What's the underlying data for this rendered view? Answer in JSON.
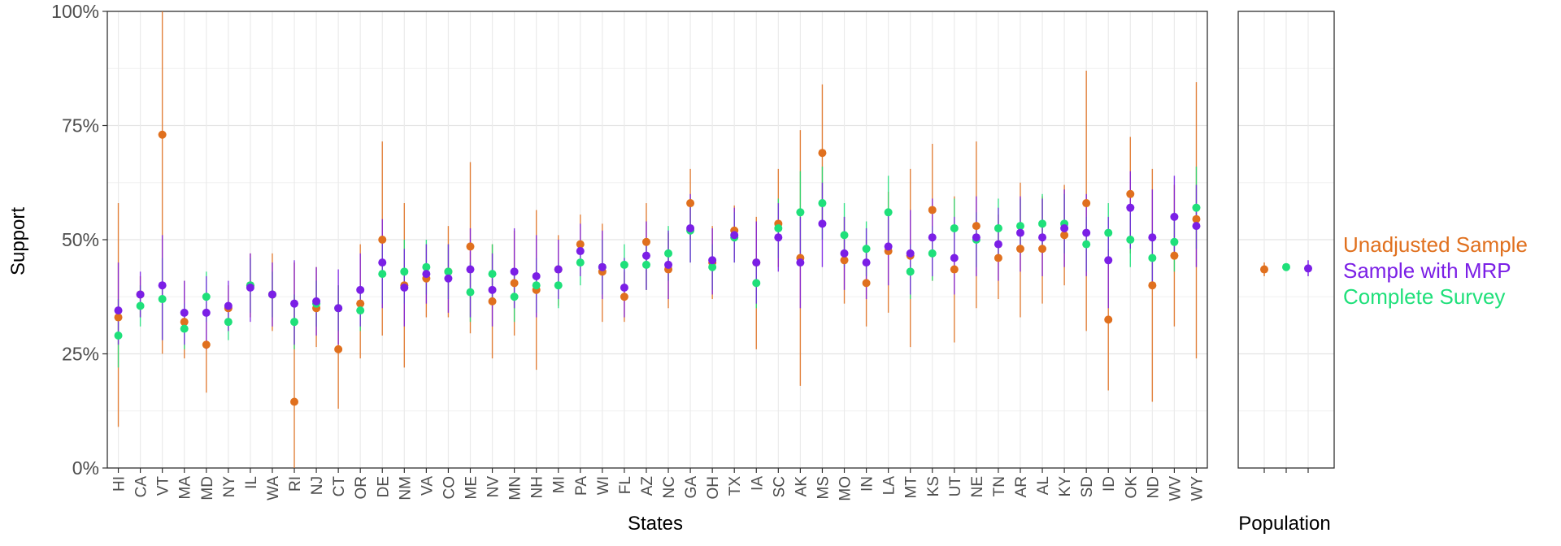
{
  "chart_data": [
    {
      "type": "scatter",
      "subtype": "point-range",
      "xlabel": "States",
      "ylabel": "Support",
      "ylim": [
        0,
        1
      ],
      "y_ticks": [
        0,
        0.25,
        0.5,
        0.75,
        1.0
      ],
      "y_tick_labels": [
        "0%",
        "25%",
        "50%",
        "75%",
        "100%"
      ],
      "grid": true,
      "legend_position": "right",
      "categories": [
        "HI",
        "CA",
        "VT",
        "MA",
        "MD",
        "NY",
        "IL",
        "WA",
        "RI",
        "NJ",
        "CT",
        "OR",
        "DE",
        "NM",
        "VA",
        "CO",
        "ME",
        "NV",
        "MN",
        "NH",
        "MI",
        "PA",
        "WI",
        "FL",
        "AZ",
        "NC",
        "GA",
        "OH",
        "TX",
        "IA",
        "SC",
        "AK",
        "MS",
        "MO",
        "IN",
        "LA",
        "MT",
        "KS",
        "UT",
        "NE",
        "TN",
        "AR",
        "AL",
        "KY",
        "SD",
        "ID",
        "OK",
        "ND",
        "WV",
        "WY"
      ],
      "series": [
        {
          "name": "Unadjusted Sample",
          "color": "#E0701E",
          "values": [
            0.33,
            0.38,
            0.73,
            0.32,
            0.27,
            0.35,
            0.4,
            0.38,
            0.145,
            0.35,
            0.26,
            0.36,
            0.5,
            0.4,
            0.415,
            0.43,
            0.485,
            0.365,
            0.405,
            0.39,
            0.435,
            0.49,
            0.43,
            0.375,
            0.495,
            0.435,
            0.58,
            0.45,
            0.52,
            0.45,
            0.535,
            0.46,
            0.69,
            0.455,
            0.405,
            0.475,
            0.465,
            0.565,
            0.435,
            0.53,
            0.46,
            0.48,
            0.48,
            0.51,
            0.58,
            0.325,
            0.6,
            0.4,
            0.465,
            0.545
          ],
          "lower": [
            0.09,
            0.33,
            0.25,
            0.24,
            0.165,
            0.3,
            0.33,
            0.3,
            0.0,
            0.265,
            0.13,
            0.24,
            0.29,
            0.22,
            0.33,
            0.33,
            0.295,
            0.24,
            0.29,
            0.215,
            0.355,
            0.42,
            0.32,
            0.32,
            0.39,
            0.35,
            0.5,
            0.37,
            0.46,
            0.26,
            0.44,
            0.18,
            0.53,
            0.36,
            0.31,
            0.34,
            0.265,
            0.41,
            0.275,
            0.35,
            0.37,
            0.33,
            0.36,
            0.4,
            0.3,
            0.17,
            0.47,
            0.145,
            0.31,
            0.24
          ],
          "upper": [
            0.58,
            0.42,
            1.0,
            0.41,
            0.36,
            0.4,
            0.47,
            0.47,
            0.45,
            0.44,
            0.4,
            0.49,
            0.715,
            0.58,
            0.49,
            0.53,
            0.67,
            0.49,
            0.52,
            0.565,
            0.51,
            0.555,
            0.535,
            0.43,
            0.58,
            0.515,
            0.655,
            0.53,
            0.575,
            0.55,
            0.655,
            0.74,
            0.84,
            0.55,
            0.5,
            0.605,
            0.655,
            0.71,
            0.595,
            0.715,
            0.555,
            0.625,
            0.595,
            0.62,
            0.87,
            0.48,
            0.725,
            0.655,
            0.62,
            0.845
          ]
        },
        {
          "name": "Sample with MRP",
          "color": "#7B1FE6",
          "values": [
            0.345,
            0.38,
            0.4,
            0.34,
            0.34,
            0.355,
            0.395,
            0.38,
            0.36,
            0.365,
            0.35,
            0.39,
            0.45,
            0.395,
            0.425,
            0.415,
            0.435,
            0.39,
            0.43,
            0.42,
            0.435,
            0.475,
            0.44,
            0.395,
            0.465,
            0.445,
            0.525,
            0.455,
            0.51,
            0.45,
            0.505,
            0.45,
            0.535,
            0.47,
            0.45,
            0.485,
            0.47,
            0.505,
            0.46,
            0.505,
            0.49,
            0.515,
            0.505,
            0.525,
            0.515,
            0.455,
            0.57,
            0.505,
            0.55,
            0.53
          ],
          "lower": [
            0.27,
            0.33,
            0.28,
            0.27,
            0.26,
            0.3,
            0.32,
            0.31,
            0.27,
            0.29,
            0.27,
            0.31,
            0.35,
            0.31,
            0.36,
            0.34,
            0.33,
            0.31,
            0.35,
            0.33,
            0.37,
            0.42,
            0.37,
            0.33,
            0.39,
            0.37,
            0.45,
            0.38,
            0.45,
            0.36,
            0.43,
            0.35,
            0.44,
            0.39,
            0.37,
            0.4,
            0.38,
            0.42,
            0.38,
            0.42,
            0.41,
            0.43,
            0.42,
            0.44,
            0.42,
            0.35,
            0.48,
            0.4,
            0.46,
            0.44
          ],
          "upper": [
            0.45,
            0.43,
            0.51,
            0.41,
            0.42,
            0.41,
            0.47,
            0.45,
            0.455,
            0.44,
            0.435,
            0.47,
            0.545,
            0.48,
            0.49,
            0.49,
            0.525,
            0.47,
            0.525,
            0.51,
            0.5,
            0.535,
            0.52,
            0.46,
            0.54,
            0.52,
            0.6,
            0.525,
            0.57,
            0.54,
            0.58,
            0.55,
            0.625,
            0.55,
            0.525,
            0.565,
            0.565,
            0.59,
            0.55,
            0.595,
            0.57,
            0.595,
            0.59,
            0.61,
            0.6,
            0.55,
            0.65,
            0.61,
            0.64,
            0.62
          ]
        },
        {
          "name": "Complete Survey",
          "color": "#1FE07A",
          "values": [
            0.29,
            0.355,
            0.37,
            0.305,
            0.375,
            0.32,
            0.4,
            0.38,
            0.32,
            0.36,
            0.35,
            0.345,
            0.425,
            0.43,
            0.44,
            0.43,
            0.385,
            0.425,
            0.375,
            0.4,
            0.4,
            0.45,
            0.44,
            0.445,
            0.445,
            0.47,
            0.52,
            0.44,
            0.505,
            0.405,
            0.525,
            0.56,
            0.58,
            0.51,
            0.48,
            0.56,
            0.43,
            0.47,
            0.525,
            0.5,
            0.525,
            0.53,
            0.535,
            0.535,
            0.49,
            0.515,
            0.5,
            0.46,
            0.495,
            0.57
          ],
          "lower": [
            0.22,
            0.31,
            0.28,
            0.26,
            0.32,
            0.28,
            0.34,
            0.33,
            0.26,
            0.31,
            0.3,
            0.3,
            0.36,
            0.36,
            0.38,
            0.37,
            0.32,
            0.36,
            0.32,
            0.34,
            0.35,
            0.4,
            0.38,
            0.4,
            0.39,
            0.41,
            0.45,
            0.39,
            0.45,
            0.35,
            0.46,
            0.47,
            0.5,
            0.44,
            0.42,
            0.48,
            0.37,
            0.41,
            0.46,
            0.44,
            0.46,
            0.47,
            0.47,
            0.47,
            0.43,
            0.45,
            0.44,
            0.4,
            0.43,
            0.48
          ],
          "upper": [
            0.37,
            0.4,
            0.46,
            0.36,
            0.43,
            0.36,
            0.46,
            0.43,
            0.38,
            0.41,
            0.4,
            0.4,
            0.49,
            0.5,
            0.5,
            0.49,
            0.45,
            0.49,
            0.43,
            0.46,
            0.45,
            0.5,
            0.5,
            0.49,
            0.5,
            0.53,
            0.59,
            0.49,
            0.56,
            0.46,
            0.59,
            0.65,
            0.66,
            0.58,
            0.54,
            0.64,
            0.49,
            0.53,
            0.59,
            0.56,
            0.59,
            0.59,
            0.6,
            0.6,
            0.55,
            0.58,
            0.56,
            0.52,
            0.56,
            0.66
          ]
        }
      ]
    },
    {
      "type": "scatter",
      "subtype": "point-range",
      "xlabel": "Population",
      "ylim": [
        0,
        1
      ],
      "grid": true,
      "series": [
        {
          "name": "Unadjusted Sample",
          "color": "#E0701E",
          "values": [
            0.435
          ],
          "lower": [
            0.42
          ],
          "upper": [
            0.45
          ]
        },
        {
          "name": "Complete Survey",
          "color": "#1FE07A",
          "values": [
            0.44
          ],
          "lower": [
            0.435
          ],
          "upper": [
            0.445
          ]
        },
        {
          "name": "Sample with MRP",
          "color": "#7B1FE6",
          "values": [
            0.437
          ],
          "lower": [
            0.42
          ],
          "upper": [
            0.455
          ]
        }
      ]
    }
  ],
  "legend": {
    "entries": [
      {
        "label": "Unadjusted Sample",
        "color": "#E0701E"
      },
      {
        "label": "Sample with MRP",
        "color": "#7B1FE6"
      },
      {
        "label": "Complete Survey",
        "color": "#1FE07A"
      }
    ]
  }
}
